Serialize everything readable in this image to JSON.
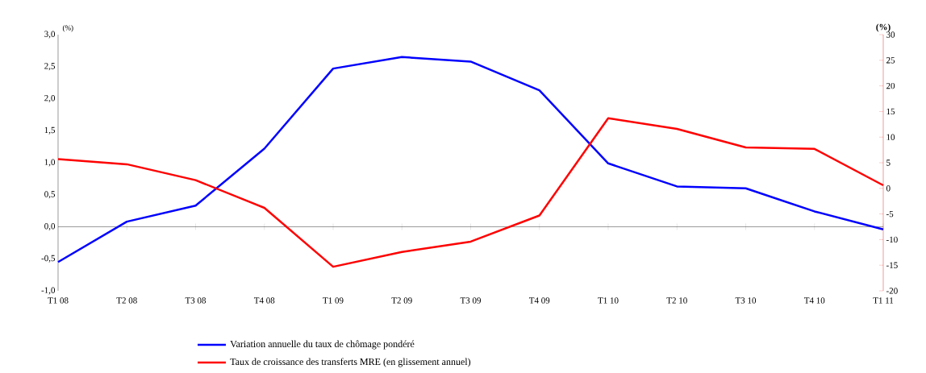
{
  "chart_data": {
    "type": "line",
    "categories": [
      "T1 08",
      "T2 08",
      "T3 08",
      "T4 08",
      "T1 09",
      "T2 09",
      "T3 09",
      "T4 09",
      "T1 10",
      "T2 10",
      "T3 10",
      "T4 10",
      "T1 11"
    ],
    "series": [
      {
        "name": "Variation annuelle du taux de chômage pondéré",
        "color": "#0000ff",
        "values": [
          -0.55,
          0.08,
          0.33,
          1.22,
          2.47,
          2.65,
          2.58,
          2.13,
          0.99,
          0.63,
          0.6,
          0.24,
          -0.04
        ]
      },
      {
        "name": "Taux de croissance des transferts MRE (en glissement annuel)",
        "color": "#ff0000",
        "axis": "y2",
        "values": [
          5.7,
          4.7,
          1.6,
          -3.8,
          -15.3,
          -12.4,
          -10.4,
          -5.3,
          13.7,
          11.6,
          8.0,
          7.7,
          0.6
        ]
      }
    ],
    "ylabel": "(%)",
    "y2label": "(%)",
    "ylim": [
      -1,
      3
    ],
    "yticks": [
      {
        "value": -1,
        "label": "-1,0"
      },
      {
        "value": -0.5,
        "label": "-0,5"
      },
      {
        "value": 0,
        "label": "0,0"
      },
      {
        "value": 0.5,
        "label": "0,5"
      },
      {
        "value": 1,
        "label": "1,0"
      },
      {
        "value": 1.5,
        "label": "1,5"
      },
      {
        "value": 2,
        "label": "2,0"
      },
      {
        "value": 2.5,
        "label": "2,5"
      },
      {
        "value": 3,
        "label": "3,0"
      }
    ],
    "y2lim": [
      -20,
      30
    ],
    "y2ticks": [
      -20,
      -15,
      -10,
      -5,
      0,
      5,
      10,
      15,
      20,
      25,
      30
    ],
    "legend": "bottom",
    "marker": "none",
    "line_style": "solid"
  }
}
